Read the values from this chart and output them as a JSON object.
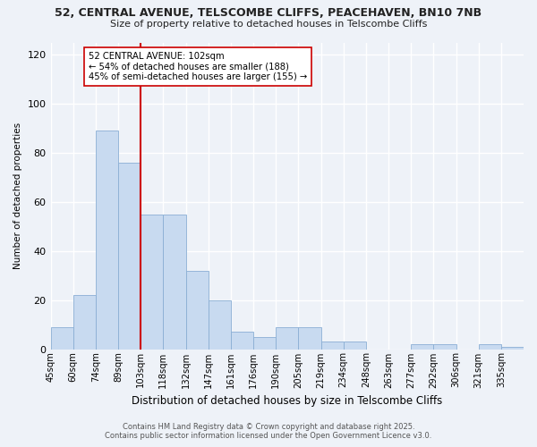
{
  "title_line1": "52, CENTRAL AVENUE, TELSCOMBE CLIFFS, PEACEHAVEN, BN10 7NB",
  "title_line2": "Size of property relative to detached houses in Telscombe Cliffs",
  "xlabel": "Distribution of detached houses by size in Telscombe Cliffs",
  "ylabel": "Number of detached properties",
  "annotation_line1": "52 CENTRAL AVENUE: 102sqm",
  "annotation_line2": "← 54% of detached houses are smaller (188)",
  "annotation_line3": "45% of semi-detached houses are larger (155) →",
  "vline_bin_index": 4,
  "categories": [
    "45sqm",
    "60sqm",
    "74sqm",
    "89sqm",
    "103sqm",
    "118sqm",
    "132sqm",
    "147sqm",
    "161sqm",
    "176sqm",
    "190sqm",
    "205sqm",
    "219sqm",
    "234sqm",
    "248sqm",
    "263sqm",
    "277sqm",
    "292sqm",
    "306sqm",
    "321sqm",
    "335sqm"
  ],
  "values": [
    9,
    22,
    89,
    76,
    55,
    55,
    32,
    20,
    7,
    5,
    9,
    9,
    3,
    3,
    0,
    0,
    2,
    2,
    0,
    2,
    1
  ],
  "bar_color": "#c8daf0",
  "bar_edge_color": "#8aaed4",
  "vline_color": "#cc0000",
  "background_color": "#eef2f8",
  "grid_color": "#ffffff",
  "ylim": [
    0,
    125
  ],
  "yticks": [
    0,
    20,
    40,
    60,
    80,
    100,
    120
  ],
  "footer1": "Contains HM Land Registry data © Crown copyright and database right 2025.",
  "footer2": "Contains public sector information licensed under the Open Government Licence v3.0."
}
